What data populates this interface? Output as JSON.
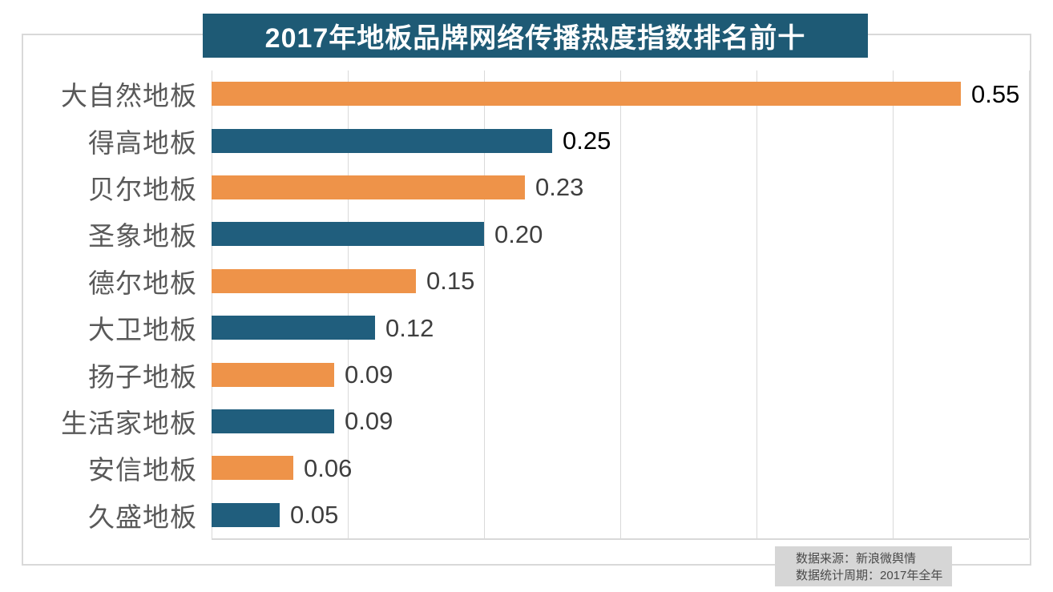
{
  "title": {
    "text": "2017年地板品牌网络传播热度指数排名前十"
  },
  "source_box": {
    "line1": "数据来源：新浪微舆情",
    "line2": "数据统计周期：2017年全年"
  },
  "colors": {
    "orange": "#EE9349",
    "teal": "#205E7D",
    "banner_bg": "#1E5A75",
    "frame": "#D9D9D9",
    "grid": "#D9D9D9",
    "category_label": "#595959",
    "source_bg": "#D6D6D6",
    "source_text": "#4A4A4A"
  },
  "chart_data": {
    "type": "bar",
    "orientation": "horizontal",
    "title": "2017年地板品牌网络传播热度指数排名前十",
    "categories": [
      "大自然地板",
      "得高地板",
      "贝尔地板",
      "圣象地板",
      "德尔地板",
      "大卫地板",
      "扬子地板",
      "生活家地板",
      "安信地板",
      "久盛地板"
    ],
    "values": [
      0.55,
      0.25,
      0.23,
      0.2,
      0.15,
      0.12,
      0.09,
      0.09,
      0.06,
      0.05
    ],
    "value_labels": [
      "0.55",
      "0.25",
      "0.23",
      "0.20",
      "0.15",
      "0.12",
      "0.09",
      "0.09",
      "0.06",
      "0.05"
    ],
    "bar_colors": [
      "#EE9349",
      "#205E7D",
      "#EE9349",
      "#205E7D",
      "#EE9349",
      "#205E7D",
      "#EE9349",
      "#205E7D",
      "#EE9349",
      "#205E7D"
    ],
    "value_label_colors": [
      "#000000",
      "#000000",
      "#3F3F3F",
      "#3F3F3F",
      "#3F3F3F",
      "#3F3F3F",
      "#3F3F3F",
      "#3F3F3F",
      "#3F3F3F",
      "#3F3F3F"
    ],
    "xlabel": "",
    "ylabel": "",
    "xlim": [
      0,
      0.6
    ],
    "grid_step": 0.1,
    "grid": true,
    "legend": false,
    "value_labels_shown": true,
    "axis_tick_labels_shown": false,
    "annotations": [
      "数据来源：新浪微舆情",
      "数据统计周期：2017年全年"
    ]
  }
}
